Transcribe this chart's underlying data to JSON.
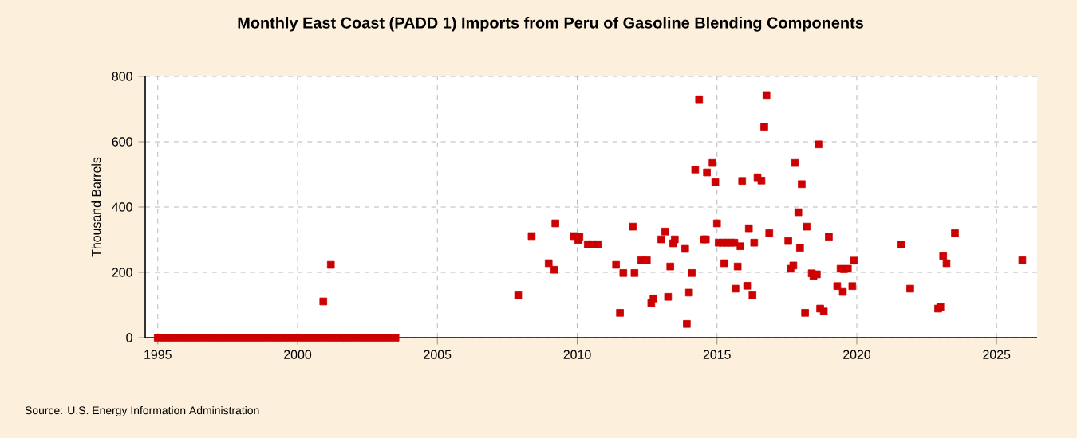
{
  "chart_data": {
    "type": "scatter",
    "title": "Monthly East Coast (PADD 1) Imports from Peru of Gasoline Blending Components",
    "ylabel": "Thousand Barrels",
    "annotations": [
      "Source: U.S. Energy Information Administration"
    ],
    "xlim": [
      1994.55,
      2026.45
    ],
    "xticks": [
      1995,
      2000,
      2005,
      2010,
      2015,
      2020,
      2025
    ],
    "ylim": [
      0,
      800
    ],
    "yticks": [
      0,
      200,
      400,
      600,
      800
    ],
    "grid": true,
    "marker": "square",
    "series": [
      {
        "color": "#cc0000",
        "x": [
          1995.0,
          1995.25,
          1995.5,
          1995.75,
          1996.0,
          1996.25,
          1996.5,
          1996.75,
          1997.0,
          1997.25,
          1997.5,
          1997.75,
          1998.0,
          1998.25,
          1998.5,
          1998.75,
          1999.0,
          1999.25,
          1999.5,
          1999.75,
          2000.0,
          2000.25,
          2000.5,
          2000.75,
          2001.0,
          2001.25,
          2001.5,
          2001.75,
          2002.0,
          2002.25,
          2002.5,
          2002.75,
          2003.0,
          2003.25,
          2003.5,
          2000.92,
          2001.19,
          2007.89,
          2008.37,
          2008.98,
          2009.18,
          2009.22,
          2009.88,
          2010.08,
          2010.04,
          2010.38,
          2010.54,
          2010.74,
          2011.39,
          2011.53,
          2011.65,
          2011.99,
          2012.05,
          2012.29,
          2012.49,
          2012.65,
          2012.73,
          2013.01,
          2013.15,
          2013.25,
          2013.33,
          2013.43,
          2013.49,
          2013.86,
          2013.92,
          2014.0,
          2014.1,
          2014.22,
          2014.36,
          2014.52,
          2014.6,
          2014.64,
          2014.84,
          2014.94,
          2015.0,
          2015.06,
          2015.2,
          2015.34,
          2015.48,
          2015.62,
          2015.26,
          2015.66,
          2015.74,
          2015.84,
          2015.9,
          2016.08,
          2016.14,
          2016.27,
          2016.33,
          2016.45,
          2016.59,
          2016.69,
          2016.77,
          2016.87,
          2017.55,
          2017.63,
          2017.73,
          2017.79,
          2017.91,
          2017.97,
          2018.03,
          2018.15,
          2018.21,
          2018.39,
          2018.45,
          2018.57,
          2018.63,
          2018.69,
          2018.82,
          2019.0,
          2019.3,
          2019.42,
          2019.54,
          2019.68,
          2019.5,
          2019.84,
          2019.9,
          2021.59,
          2021.91,
          2022.91,
          2022.99,
          2023.09,
          2023.21,
          2023.51,
          2025.92
        ],
        "values": [
          0,
          0,
          0,
          0,
          0,
          0,
          0,
          0,
          0,
          0,
          0,
          0,
          0,
          0,
          0,
          0,
          0,
          0,
          0,
          0,
          0,
          0,
          0,
          0,
          0,
          0,
          0,
          0,
          0,
          0,
          0,
          0,
          0,
          0,
          0,
          111,
          223,
          130,
          311,
          228,
          208,
          350,
          311,
          309,
          299,
          286,
          286,
          286,
          223,
          76,
          198,
          340,
          198,
          237,
          237,
          106,
          120,
          301,
          325,
          125,
          218,
          289,
          301,
          272,
          42,
          138,
          198,
          515,
          730,
          301,
          301,
          506,
          535,
          476,
          350,
          291,
          291,
          291,
          291,
          291,
          228,
          150,
          218,
          280,
          480,
          159,
          335,
          130,
          291,
          491,
          481,
          646,
          743,
          320,
          296,
          211,
          221,
          535,
          384,
          275,
          470,
          76,
          340,
          197,
          189,
          194,
          592,
          89,
          80,
          309,
          158,
          211,
          210,
          211,
          140,
          158,
          236,
          285,
          150,
          89,
          94,
          250,
          228,
          320,
          237
        ]
      }
    ]
  }
}
